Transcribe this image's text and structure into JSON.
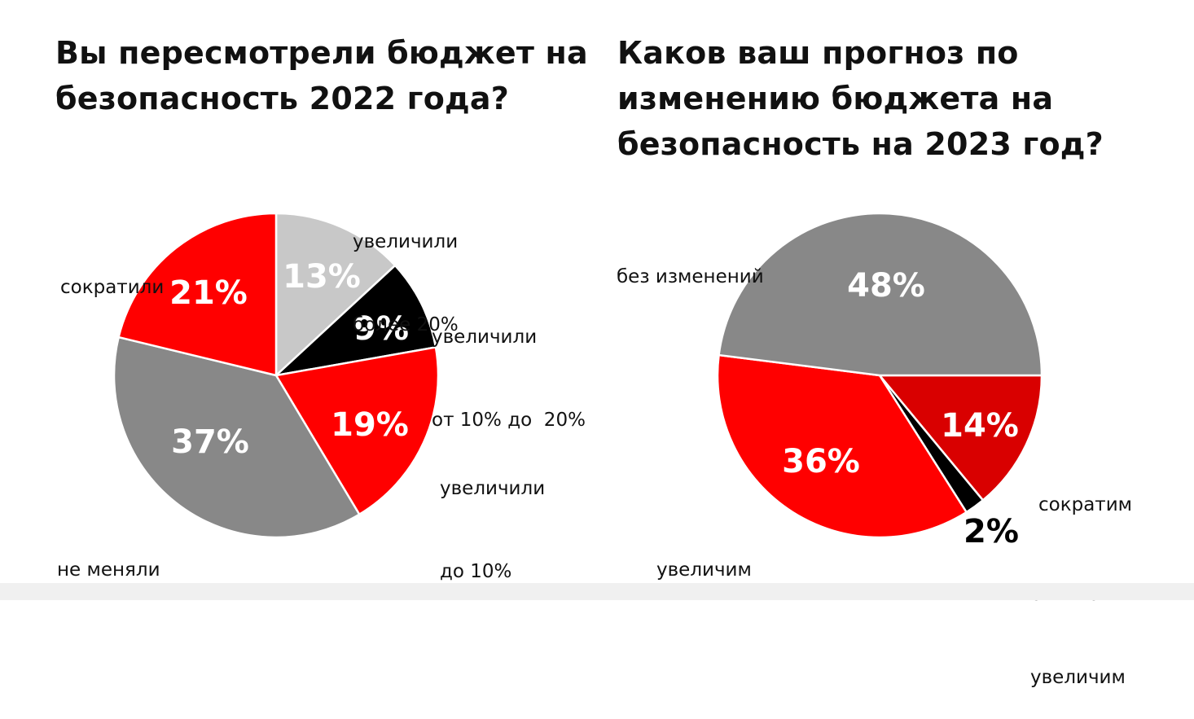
{
  "chart_data": [
    {
      "type": "pie",
      "title_lines": [
        "Вы пересмотрели бюджет на",
        "безопасность 2022 года?"
      ],
      "slices": [
        {
          "label_lines": [
            "увеличили",
            "более 20%"
          ],
          "value": 13,
          "value_label": "13%",
          "color": "#c8c8c8",
          "text_color": "#ffffff"
        },
        {
          "label_lines": [
            "увеличили",
            "от 10% до  20%"
          ],
          "value": 9,
          "value_label": "9%",
          "color": "#000000",
          "text_color": "#ffffff"
        },
        {
          "label_lines": [
            "увеличили",
            "до 10%"
          ],
          "value": 19,
          "value_label": "19%",
          "color": "#ff0000",
          "text_color": "#ffffff"
        },
        {
          "label_lines": [
            "не меняли"
          ],
          "value": 37,
          "value_label": "37%",
          "color": "#888888",
          "text_color": "#ffffff"
        },
        {
          "label_lines": [
            "сократили"
          ],
          "value": 21,
          "value_label": "21%",
          "color": "#ff0000",
          "text_color": "#ffffff"
        }
      ]
    },
    {
      "type": "pie",
      "title_lines": [
        "Каков ваш прогноз по",
        "изменению бюджета на",
        "безопасность на 2023 год?"
      ],
      "slices": [
        {
          "label_lines": [
            "сократим"
          ],
          "value": 14,
          "value_label": "14%",
          "color": "#d90000",
          "text_color": "#ffffff"
        },
        {
          "label_lines": [
            "сильно",
            "увеличим"
          ],
          "value": 2,
          "value_label": "2%",
          "color": "#000000",
          "text_color": "#000000"
        },
        {
          "label_lines": [
            "увеличим"
          ],
          "value": 36,
          "value_label": "36%",
          "color": "#ff0000",
          "text_color": "#ffffff"
        },
        {
          "label_lines": [
            "без изменений"
          ],
          "value": 48,
          "value_label": "48%",
          "color": "#888888",
          "text_color": "#ffffff"
        }
      ]
    }
  ]
}
